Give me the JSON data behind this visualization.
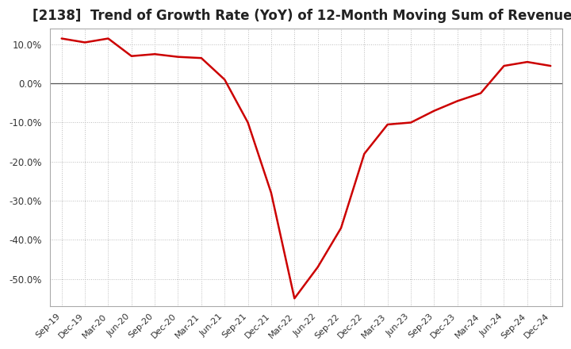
{
  "title": "[2138]  Trend of Growth Rate (YoY) of 12-Month Moving Sum of Revenues",
  "title_fontsize": 12,
  "line_color": "#cc0000",
  "background_color": "#ffffff",
  "grid_color": "#bbbbbb",
  "plot_bg_color": "#ffffff",
  "ylim": [
    -57,
    14
  ],
  "yticks": [
    10.0,
    0.0,
    -10.0,
    -20.0,
    -30.0,
    -40.0,
    -50.0
  ],
  "x_labels": [
    "Sep-19",
    "Dec-19",
    "Mar-20",
    "Jun-20",
    "Sep-20",
    "Dec-20",
    "Mar-21",
    "Jun-21",
    "Sep-21",
    "Dec-21",
    "Mar-22",
    "Jun-22",
    "Sep-22",
    "Dec-22",
    "Mar-23",
    "Jun-23",
    "Sep-23",
    "Dec-23",
    "Mar-24",
    "Jun-24",
    "Sep-24",
    "Dec-24"
  ],
  "y_values": [
    11.5,
    10.5,
    11.5,
    7.0,
    7.5,
    6.8,
    6.5,
    1.0,
    -10.0,
    -28.0,
    -55.0,
    -47.0,
    -37.0,
    -18.0,
    -10.5,
    -10.0,
    -7.0,
    -4.5,
    -2.5,
    4.5,
    5.5,
    4.5
  ]
}
